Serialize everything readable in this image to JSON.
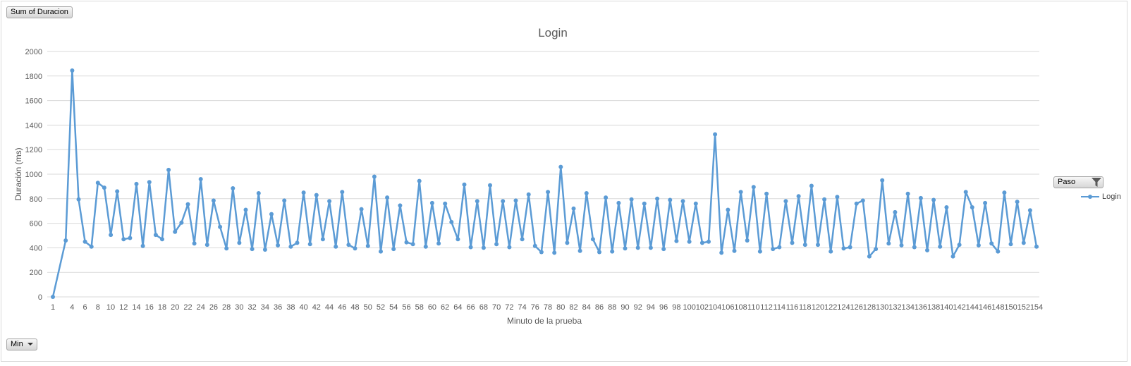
{
  "buttons": {
    "sum_field": "Sum of Duracion",
    "series_field": "Paso",
    "axis_field": "Min"
  },
  "colors": {
    "series": "#5b9bd5",
    "grid": "#d9d9d9",
    "text": "#595959"
  },
  "chart_data": {
    "type": "line",
    "title": "Login",
    "xlabel": "Minuto de la prueba",
    "ylabel": "Duración (ms)",
    "ylim": [
      0,
      2000
    ],
    "yticks": [
      0,
      200,
      400,
      600,
      800,
      1000,
      1200,
      1400,
      1600,
      1800,
      2000
    ],
    "grid": true,
    "legend_position": "right",
    "categories": [
      "1",
      "3",
      "4",
      "5",
      "6",
      "7",
      "8",
      "9",
      "10",
      "11",
      "12",
      "13",
      "14",
      "15",
      "16",
      "17",
      "18",
      "19",
      "20",
      "21",
      "22",
      "23",
      "24",
      "25",
      "26",
      "27",
      "28",
      "29",
      "30",
      "31",
      "32",
      "33",
      "34",
      "35",
      "36",
      "37",
      "38",
      "39",
      "40",
      "41",
      "42",
      "43",
      "44",
      "45",
      "46",
      "47",
      "48",
      "49",
      "50",
      "51",
      "52",
      "53",
      "54",
      "55",
      "56",
      "57",
      "58",
      "59",
      "60",
      "61",
      "62",
      "63",
      "64",
      "65",
      "66",
      "67",
      "68",
      "69",
      "70",
      "71",
      "72",
      "73",
      "74",
      "75",
      "76",
      "77",
      "78",
      "79",
      "80",
      "81",
      "82",
      "83",
      "84",
      "85",
      "86",
      "87",
      "88",
      "89",
      "90",
      "91",
      "92",
      "93",
      "94",
      "95",
      "96",
      "97",
      "98",
      "99",
      "100",
      "101",
      "102",
      "103",
      "104",
      "105",
      "106",
      "107",
      "108",
      "109",
      "110",
      "111",
      "112",
      "113",
      "114",
      "115",
      "116",
      "117",
      "118",
      "119",
      "120",
      "121",
      "122",
      "123",
      "124",
      "125",
      "126",
      "127",
      "128",
      "129",
      "130",
      "131",
      "132",
      "133",
      "134",
      "135",
      "136",
      "137",
      "138",
      "139",
      "140",
      "141",
      "142",
      "143",
      "144",
      "145",
      "146",
      "147",
      "148",
      "149",
      "150",
      "151",
      "152",
      "153",
      "154"
    ],
    "tick_labels": [
      "1",
      "4",
      "6",
      "8",
      "10",
      "12",
      "14",
      "16",
      "18",
      "20",
      "22",
      "24",
      "26",
      "28",
      "30",
      "32",
      "34",
      "36",
      "38",
      "40",
      "42",
      "44",
      "46",
      "48",
      "50",
      "52",
      "54",
      "56",
      "58",
      "60",
      "62",
      "64",
      "66",
      "68",
      "70",
      "72",
      "74",
      "76",
      "78",
      "80",
      "82",
      "84",
      "86",
      "88",
      "90",
      "92",
      "94",
      "96",
      "98",
      "100",
      "102",
      "104",
      "106",
      "108",
      "110",
      "112",
      "114",
      "116",
      "118",
      "120",
      "122",
      "124",
      "126",
      "128",
      "130",
      "132",
      "134",
      "136",
      "138",
      "140",
      "142",
      "144",
      "146",
      "148",
      "150",
      "152",
      "154"
    ],
    "series": [
      {
        "name": "Login",
        "values": [
          0,
          460,
          1845,
          795,
          450,
          410,
          930,
          890,
          505,
          860,
          470,
          480,
          920,
          415,
          935,
          505,
          470,
          1035,
          530,
          605,
          755,
          435,
          960,
          425,
          785,
          570,
          395,
          885,
          440,
          710,
          390,
          845,
          385,
          675,
          420,
          785,
          410,
          440,
          850,
          430,
          830,
          470,
          780,
          410,
          855,
          425,
          395,
          715,
          415,
          980,
          370,
          810,
          390,
          745,
          445,
          430,
          945,
          410,
          765,
          435,
          760,
          610,
          470,
          915,
          405,
          780,
          400,
          910,
          430,
          780,
          405,
          785,
          470,
          835,
          415,
          365,
          855,
          360,
          1060,
          440,
          720,
          375,
          845,
          470,
          365,
          810,
          370,
          765,
          395,
          795,
          400,
          760,
          400,
          800,
          390,
          790,
          455,
          780,
          450,
          760,
          440,
          450,
          1325,
          360,
          710,
          375,
          855,
          460,
          895,
          370,
          840,
          390,
          405,
          780,
          440,
          820,
          425,
          905,
          425,
          795,
          370,
          815,
          395,
          405,
          760,
          785,
          330,
          390,
          950,
          435,
          690,
          420,
          840,
          405,
          805,
          380,
          790,
          410,
          730,
          330,
          425,
          855,
          730,
          420,
          765,
          435,
          370,
          850,
          430,
          775,
          440,
          705,
          410
        ]
      }
    ]
  }
}
